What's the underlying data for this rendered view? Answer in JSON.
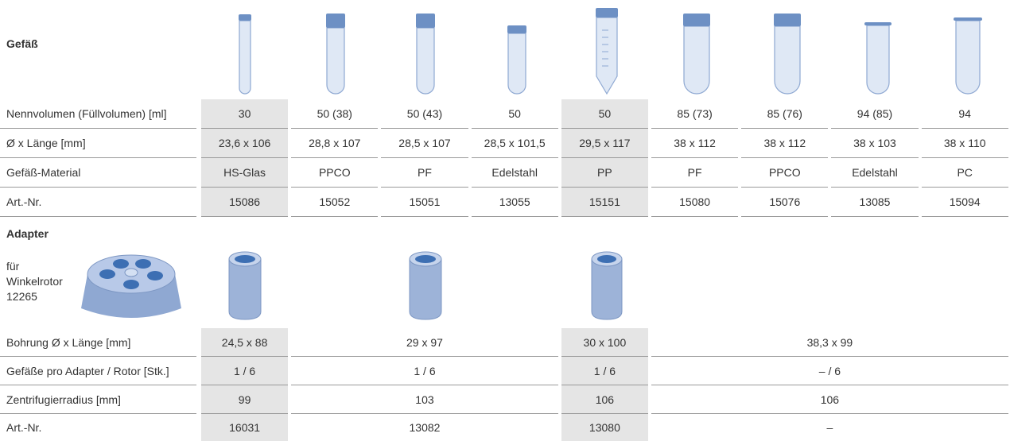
{
  "vessel": {
    "title": "Gefäß",
    "rows": [
      {
        "label": "Nennvolumen (Füllvolumen) [ml]",
        "cells": [
          "30",
          "50 (38)",
          "50 (43)",
          "50",
          "50",
          "85 (73)",
          "85 (76)",
          "94 (85)",
          "94"
        ]
      },
      {
        "label": "Ø x Länge [mm]",
        "cells": [
          "23,6 x 106",
          "28,8 x 107",
          "28,5 x 107",
          "28,5 x 101,5",
          "29,5 x 117",
          "38 x 112",
          "38 x 112",
          "38 x 103",
          "38 x 110"
        ]
      },
      {
        "label": "Gefäß-Material",
        "cells": [
          "HS-Glas",
          "PPCO",
          "PF",
          "Edelstahl",
          "PP",
          "PF",
          "PPCO",
          "Edelstahl",
          "PC"
        ]
      },
      {
        "label": "Art.-Nr.",
        "cells": [
          "15086",
          "15052",
          "15051",
          "13055",
          "15151",
          "15080",
          "15076",
          "13085",
          "15094"
        ]
      }
    ]
  },
  "adapter": {
    "title": "Adapter",
    "note": [
      "für",
      "Winkelrotor",
      "12265"
    ],
    "rows": [
      {
        "label": "Bohrung Ø x Länge [mm]",
        "cells": [
          "24,5 x 88",
          "29 x 97",
          "30 x 100",
          "38,3 x 99"
        ]
      },
      {
        "label": "Gefäße pro Adapter / Rotor [Stk.]",
        "cells": [
          "1 / 6",
          "1 / 6",
          "1 / 6",
          "– / 6"
        ]
      },
      {
        "label": "Zentrifugierradius [mm]",
        "cells": [
          "99",
          "103",
          "106",
          "106"
        ]
      },
      {
        "label": "Art.-Nr.",
        "cells": [
          "16031",
          "13082",
          "13080",
          "–"
        ]
      }
    ]
  }
}
